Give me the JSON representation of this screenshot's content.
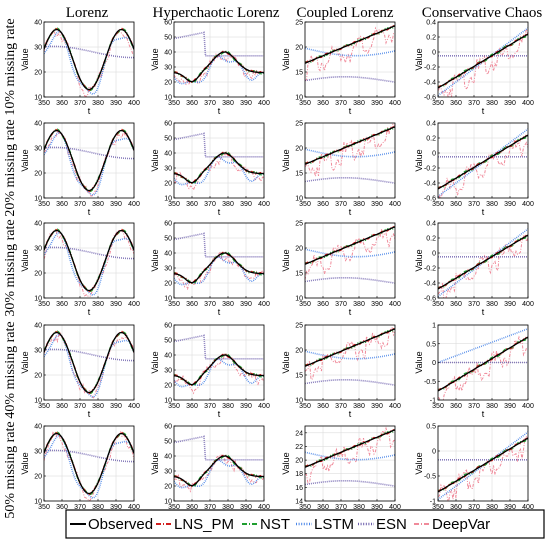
{
  "figure": {
    "column_titles": [
      "Lorenz",
      "Hyperchaotic Lorenz",
      "Coupled Lorenz",
      "Conservative Chaos"
    ],
    "row_labels": [
      "10% missing rate",
      "20% missing rate",
      "30% missing rate",
      "40% missing rate",
      "50% missing rate"
    ],
    "legend": [
      {
        "name": "Observed",
        "color": "#000000",
        "style": "solid"
      },
      {
        "name": "LNS_PM",
        "color": "#d11f1f",
        "style": "dashdot"
      },
      {
        "name": "NST",
        "color": "#1f9e2f",
        "style": "dashdot"
      },
      {
        "name": "LSTM",
        "color": "#4a86e8",
        "style": "dots"
      },
      {
        "name": "ESN",
        "color": "#6a5cab",
        "style": "dots"
      },
      {
        "name": "DeepVar",
        "color": "#f08a9a",
        "style": "dashdot"
      }
    ]
  },
  "chart_data": [
    {
      "type": "line",
      "row": 0,
      "col": 0,
      "xlabel": "t",
      "ylabel": "Value",
      "xlim": [
        350,
        400
      ],
      "ylim": [
        10,
        40
      ],
      "xticks": [
        350,
        360,
        370,
        380,
        390,
        400
      ],
      "yticks": [
        10,
        20,
        30,
        40
      ]
    },
    {
      "type": "line",
      "row": 0,
      "col": 1,
      "xlabel": "t",
      "ylabel": "Value",
      "xlim": [
        350,
        400
      ],
      "ylim": [
        10,
        60
      ],
      "xticks": [
        350,
        360,
        370,
        380,
        390,
        400
      ],
      "yticks": [
        10,
        20,
        30,
        40,
        50,
        60
      ]
    },
    {
      "type": "line",
      "row": 0,
      "col": 2,
      "xlabel": "t",
      "ylabel": "Value",
      "xlim": [
        350,
        400
      ],
      "ylim": [
        10,
        25
      ],
      "xticks": [
        350,
        360,
        370,
        380,
        390,
        400
      ],
      "yticks": [
        10,
        15,
        20,
        25
      ]
    },
    {
      "type": "line",
      "row": 0,
      "col": 3,
      "xlabel": "t",
      "ylabel": "Value",
      "xlim": [
        350,
        400
      ],
      "ylim": [
        -0.6,
        0.4
      ],
      "xticks": [
        350,
        360,
        370,
        380,
        390,
        400
      ],
      "yticks": [
        -0.6,
        -0.4,
        -0.2,
        0,
        0.2,
        0.4
      ]
    },
    {
      "type": "line",
      "row": 1,
      "col": 0,
      "xlabel": "t",
      "ylabel": "Value",
      "xlim": [
        350,
        400
      ],
      "ylim": [
        10,
        40
      ],
      "xticks": [
        350,
        360,
        370,
        380,
        390,
        400
      ],
      "yticks": [
        10,
        20,
        30,
        40
      ]
    },
    {
      "type": "line",
      "row": 1,
      "col": 1,
      "xlabel": "t",
      "ylabel": "Value",
      "xlim": [
        350,
        400
      ],
      "ylim": [
        10,
        60
      ],
      "xticks": [
        350,
        360,
        370,
        380,
        390,
        400
      ],
      "yticks": [
        10,
        20,
        30,
        40,
        50,
        60
      ]
    },
    {
      "type": "line",
      "row": 1,
      "col": 2,
      "xlabel": "t",
      "ylabel": "Value",
      "xlim": [
        350,
        400
      ],
      "ylim": [
        10,
        25
      ],
      "xticks": [
        350,
        360,
        370,
        380,
        390,
        400
      ],
      "yticks": [
        10,
        15,
        20,
        25
      ]
    },
    {
      "type": "line",
      "row": 1,
      "col": 3,
      "xlabel": "t",
      "ylabel": "Value",
      "xlim": [
        350,
        400
      ],
      "ylim": [
        -0.6,
        0.4
      ],
      "xticks": [
        350,
        360,
        370,
        380,
        390,
        400
      ],
      "yticks": [
        -0.6,
        -0.4,
        -0.2,
        0,
        0.2,
        0.4
      ]
    },
    {
      "type": "line",
      "row": 2,
      "col": 0,
      "xlabel": "t",
      "ylabel": "Value",
      "xlim": [
        350,
        400
      ],
      "ylim": [
        10,
        40
      ],
      "xticks": [
        350,
        360,
        370,
        380,
        390,
        400
      ],
      "yticks": [
        10,
        20,
        30,
        40
      ]
    },
    {
      "type": "line",
      "row": 2,
      "col": 1,
      "xlabel": "t",
      "ylabel": "Value",
      "xlim": [
        350,
        400
      ],
      "ylim": [
        10,
        60
      ],
      "xticks": [
        350,
        360,
        370,
        380,
        390,
        400
      ],
      "yticks": [
        10,
        20,
        30,
        40,
        50,
        60
      ]
    },
    {
      "type": "line",
      "row": 2,
      "col": 2,
      "xlabel": "t",
      "ylabel": "Value",
      "xlim": [
        350,
        400
      ],
      "ylim": [
        10,
        25
      ],
      "xticks": [
        350,
        360,
        370,
        380,
        390,
        400
      ],
      "yticks": [
        10,
        15,
        20,
        25
      ]
    },
    {
      "type": "line",
      "row": 2,
      "col": 3,
      "xlabel": "t",
      "ylabel": "Value",
      "xlim": [
        350,
        400
      ],
      "ylim": [
        -0.6,
        0.4
      ],
      "xticks": [
        350,
        360,
        370,
        380,
        390,
        400
      ],
      "yticks": [
        -0.6,
        -0.4,
        -0.2,
        0,
        0.2,
        0.4
      ]
    },
    {
      "type": "line",
      "row": 3,
      "col": 0,
      "xlabel": "t",
      "ylabel": "Value",
      "xlim": [
        350,
        400
      ],
      "ylim": [
        10,
        40
      ],
      "xticks": [
        350,
        360,
        370,
        380,
        390,
        400
      ],
      "yticks": [
        10,
        20,
        30,
        40
      ]
    },
    {
      "type": "line",
      "row": 3,
      "col": 1,
      "xlabel": "t",
      "ylabel": "Value",
      "xlim": [
        350,
        400
      ],
      "ylim": [
        10,
        60
      ],
      "xticks": [
        350,
        360,
        370,
        380,
        390,
        400
      ],
      "yticks": [
        10,
        20,
        30,
        40,
        50,
        60
      ]
    },
    {
      "type": "line",
      "row": 3,
      "col": 2,
      "xlabel": "t",
      "ylabel": "Value",
      "xlim": [
        350,
        400
      ],
      "ylim": [
        10,
        25
      ],
      "xticks": [
        350,
        360,
        370,
        380,
        390,
        400
      ],
      "yticks": [
        10,
        15,
        20,
        25
      ]
    },
    {
      "type": "line",
      "row": 3,
      "col": 3,
      "xlabel": "t",
      "ylabel": "Value",
      "xlim": [
        350,
        400
      ],
      "ylim": [
        -1,
        1
      ],
      "xticks": [
        350,
        360,
        370,
        380,
        390,
        400
      ],
      "yticks": [
        -1,
        -0.5,
        0,
        0.5,
        1
      ]
    },
    {
      "type": "line",
      "row": 4,
      "col": 0,
      "xlabel": "t",
      "ylabel": "Value",
      "xlim": [
        350,
        400
      ],
      "ylim": [
        10,
        40
      ],
      "xticks": [
        350,
        360,
        370,
        380,
        390,
        400
      ],
      "yticks": [
        10,
        20,
        30,
        40
      ]
    },
    {
      "type": "line",
      "row": 4,
      "col": 1,
      "xlabel": "t",
      "ylabel": "Value",
      "xlim": [
        350,
        400
      ],
      "ylim": [
        10,
        60
      ],
      "xticks": [
        350,
        360,
        370,
        380,
        390,
        400
      ],
      "yticks": [
        10,
        20,
        30,
        40,
        50,
        60
      ]
    },
    {
      "type": "line",
      "row": 4,
      "col": 2,
      "xlabel": "t",
      "ylabel": "Value",
      "xlim": [
        350,
        400
      ],
      "ylim": [
        14,
        25
      ],
      "xticks": [
        350,
        360,
        370,
        380,
        390,
        400
      ],
      "yticks": [
        14,
        16,
        18,
        20,
        22,
        24
      ]
    },
    {
      "type": "line",
      "row": 4,
      "col": 3,
      "xlabel": "t",
      "ylabel": "Value",
      "xlim": [
        350,
        400
      ],
      "ylim": [
        -1,
        0.5
      ],
      "xticks": [
        350,
        360,
        370,
        380,
        390,
        400
      ],
      "yticks": [
        -1,
        -0.5,
        0,
        0.5
      ]
    }
  ]
}
